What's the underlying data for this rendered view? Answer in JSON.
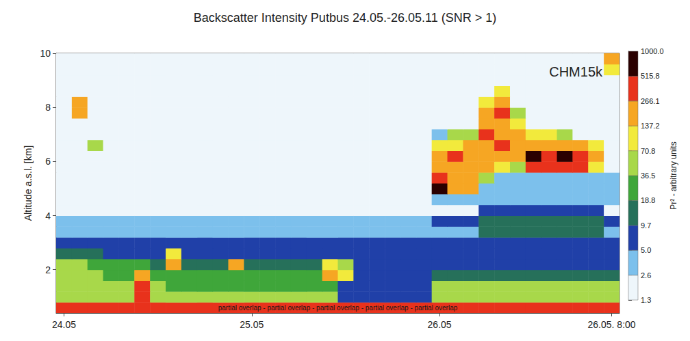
{
  "chart_data": {
    "type": "heatmap",
    "title": "Backscatter Intensity Putbus 24.05.-26.05.11 (SNR > 1)",
    "annotations": [
      "CHM15k",
      "partial overlap - partial overlap - partial overlap - partial overlap - partial overlap"
    ],
    "y_label": "Altitude a.s.l. [km]",
    "categories": [
      "24.05",
      null,
      null,
      null,
      null,
      null,
      null,
      null,
      null,
      null,
      null,
      null,
      "25.05",
      null,
      null,
      null,
      null,
      null,
      null,
      null,
      null,
      null,
      null,
      null,
      "26.05",
      null,
      null,
      null,
      null,
      null,
      null,
      null,
      null,
      null,
      null,
      "26.05. 8:00"
    ],
    "y": [
      0.6,
      1.0,
      1.4,
      1.8,
      2.2,
      2.6,
      3.0,
      3.4,
      3.8,
      4.2,
      4.6,
      5.0,
      5.4,
      5.8,
      6.2,
      6.6,
      7.0,
      7.4,
      7.8,
      8.2,
      8.6,
      9.0,
      9.4,
      9.8
    ],
    "ylim": [
      0.4,
      10
    ],
    "yticks": [
      2,
      4,
      6,
      8,
      10
    ],
    "grid": false,
    "cells": [
      [
        300,
        300,
        300,
        300,
        300,
        300,
        300,
        300,
        300,
        300,
        300,
        300,
        300,
        300,
        300,
        300,
        300,
        300,
        300,
        300,
        300,
        300,
        300,
        300,
        300,
        300,
        300,
        300,
        300,
        300,
        300,
        300,
        300,
        300,
        300,
        300
      ],
      [
        50,
        50,
        50,
        50,
        50,
        300,
        50,
        50,
        50,
        50,
        50,
        50,
        50,
        50,
        50,
        50,
        50,
        50,
        7,
        7,
        7,
        7,
        7,
        7,
        45,
        45,
        45,
        45,
        45,
        45,
        45,
        45,
        45,
        45,
        45,
        45
      ],
      [
        45,
        45,
        45,
        45,
        45,
        300,
        40,
        30,
        30,
        30,
        30,
        30,
        25,
        25,
        25,
        25,
        25,
        25,
        6,
        6,
        6,
        6,
        6,
        6,
        45,
        45,
        45,
        45,
        45,
        45,
        45,
        45,
        45,
        45,
        45,
        45
      ],
      [
        45,
        45,
        45,
        25,
        25,
        200,
        20,
        20,
        20,
        20,
        20,
        20,
        20,
        20,
        20,
        20,
        20,
        150,
        120,
        6,
        6,
        6,
        6,
        6,
        12,
        12,
        12,
        12,
        12,
        12,
        12,
        12,
        12,
        12,
        12,
        12
      ],
      [
        40,
        40,
        20,
        20,
        20,
        30,
        15,
        150,
        12,
        12,
        12,
        150,
        10,
        10,
        10,
        10,
        10,
        120,
        60,
        6,
        6,
        6,
        6,
        6,
        7,
        7,
        7,
        7,
        7,
        7,
        7,
        7,
        7,
        7,
        7,
        7
      ],
      [
        15,
        15,
        15,
        8,
        8,
        6,
        6,
        80,
        6,
        6,
        6,
        6,
        6,
        6,
        6,
        6,
        6,
        6,
        6,
        6,
        6,
        6,
        6,
        6,
        6,
        6,
        6,
        6,
        6,
        6,
        6,
        6,
        6,
        6,
        6,
        6
      ],
      [
        5,
        5,
        5,
        5,
        5,
        5,
        5,
        5,
        5,
        5,
        5,
        5,
        5,
        5,
        5,
        5,
        5,
        5,
        5,
        5,
        5,
        5,
        5,
        5,
        6,
        6,
        6,
        6,
        6,
        6,
        6,
        6,
        6,
        6,
        6,
        6
      ],
      [
        4,
        4,
        4,
        4,
        4,
        4,
        4,
        4,
        4,
        4,
        4,
        4,
        4,
        4,
        4,
        4,
        4,
        4,
        4,
        4,
        4,
        4,
        4,
        4,
        4,
        4,
        4,
        10,
        10,
        10,
        10,
        10,
        10,
        10,
        10,
        4
      ],
      [
        3,
        3,
        3,
        3,
        3,
        3,
        3,
        3,
        3,
        3,
        3,
        3,
        3,
        3,
        3,
        3,
        3,
        3,
        3,
        3,
        3,
        3,
        3,
        3,
        5,
        5,
        5,
        10,
        10,
        10,
        10,
        10,
        10,
        10,
        10,
        5
      ],
      [
        2.5,
        2.5,
        2.5,
        2.5,
        2.5,
        2.5,
        2.5,
        2.5,
        2.5,
        2.5,
        2.5,
        2.5,
        2.5,
        2.5,
        2.5,
        2.5,
        2.5,
        2.5,
        2.5,
        2.5,
        2.5,
        2.5,
        2.5,
        2.5,
        2.5,
        2.5,
        2.5,
        6,
        6,
        6,
        6,
        6,
        6,
        6,
        6,
        2.5
      ],
      [
        2,
        2,
        2,
        2,
        2,
        2,
        2,
        2,
        2,
        2,
        2,
        2,
        2,
        2,
        2,
        2,
        2,
        2,
        2,
        2,
        2,
        2,
        2,
        2,
        4,
        4,
        4,
        4,
        4,
        4,
        4,
        4,
        4,
        4,
        4,
        4
      ],
      [
        2,
        2,
        2,
        2,
        2,
        2,
        2,
        2,
        2,
        2,
        2,
        2,
        2,
        2,
        2,
        2,
        2,
        2,
        2,
        2,
        2,
        2,
        2,
        2,
        700,
        200,
        200,
        3,
        3,
        3,
        3,
        3,
        3,
        3,
        3,
        3
      ],
      [
        2,
        2,
        2,
        2,
        2,
        2,
        2,
        2,
        2,
        2,
        2,
        2,
        2,
        2,
        2,
        2,
        2,
        2,
        2,
        2,
        2,
        2,
        2,
        2,
        300,
        150,
        150,
        60,
        3,
        3,
        3,
        3,
        3,
        3,
        3,
        3
      ],
      [
        2,
        2,
        2,
        2,
        2,
        2,
        2,
        2,
        2,
        2,
        2,
        2,
        2,
        2,
        2,
        2,
        2,
        2,
        2,
        2,
        2,
        2,
        2,
        2,
        200,
        250,
        250,
        150,
        100,
        40,
        300,
        300,
        300,
        300,
        120,
        2.5
      ],
      [
        2,
        2,
        2,
        2,
        2,
        2,
        2,
        2,
        2,
        2,
        2,
        2,
        2,
        2,
        2,
        2,
        2,
        2,
        2,
        2,
        2,
        2,
        2,
        2,
        150,
        300,
        200,
        200,
        200,
        150,
        600,
        300,
        600,
        400,
        150,
        2.5
      ],
      [
        2,
        2,
        60,
        2,
        2,
        2,
        2,
        2,
        2,
        2,
        2,
        2,
        2,
        2,
        2,
        2,
        2,
        2,
        2,
        2,
        2,
        2,
        2,
        2,
        80,
        120,
        150,
        250,
        300,
        200,
        250,
        200,
        200,
        150,
        80,
        2
      ],
      [
        2,
        2,
        2,
        2,
        2,
        2,
        2,
        2,
        2,
        2,
        2,
        2,
        2,
        2,
        2,
        2,
        2,
        2,
        2,
        2,
        2,
        2,
        2,
        2,
        3,
        50,
        60,
        300,
        250,
        150,
        100,
        80,
        60,
        2,
        2,
        2
      ],
      [
        2,
        2,
        2,
        2,
        2,
        2,
        2,
        2,
        2,
        2,
        2,
        2,
        2,
        2,
        2,
        2,
        2,
        2,
        2,
        2,
        2,
        2,
        2,
        2,
        2,
        2,
        2,
        200,
        250,
        80,
        2,
        2,
        2,
        2,
        2,
        2
      ],
      [
        2,
        200,
        2,
        2,
        2,
        2,
        2,
        2,
        2,
        2,
        2,
        2,
        2,
        2,
        2,
        2,
        2,
        2,
        2,
        2,
        2,
        2,
        2,
        2,
        2,
        2,
        2,
        150,
        300,
        40,
        2,
        2,
        2,
        2,
        2,
        2
      ],
      [
        2,
        150,
        2,
        2,
        2,
        2,
        2,
        2,
        2,
        2,
        2,
        2,
        2,
        2,
        2,
        2,
        2,
        2,
        2,
        2,
        2,
        2,
        2,
        2,
        2,
        2,
        2,
        100,
        200,
        2,
        2,
        2,
        2,
        2,
        2,
        2
      ],
      [
        2,
        2,
        2,
        2,
        2,
        2,
        2,
        2,
        2,
        2,
        2,
        2,
        2,
        2,
        2,
        2,
        2,
        2,
        2,
        2,
        2,
        2,
        2,
        2,
        2,
        2,
        2,
        2,
        80,
        2,
        2,
        2,
        2,
        2,
        2,
        2
      ],
      [
        2,
        2,
        2,
        2,
        2,
        2,
        2,
        2,
        2,
        2,
        2,
        2,
        2,
        2,
        2,
        2,
        2,
        2,
        2,
        2,
        2,
        2,
        2,
        2,
        2,
        2,
        2,
        2,
        2,
        2,
        2,
        2,
        2,
        2,
        2,
        2
      ],
      [
        2,
        2,
        2,
        2,
        2,
        2,
        2,
        2,
        2,
        2,
        2,
        2,
        2,
        2,
        2,
        2,
        2,
        2,
        2,
        2,
        2,
        2,
        2,
        2,
        2,
        2,
        2,
        2,
        2,
        2,
        2,
        2,
        2,
        2,
        2,
        100
      ],
      [
        2,
        2,
        2,
        2,
        2,
        2,
        2,
        2,
        2,
        2,
        2,
        2,
        2,
        2,
        2,
        2,
        2,
        2,
        2,
        2,
        2,
        2,
        2,
        2,
        2,
        2,
        2,
        2,
        2,
        2,
        2,
        2,
        2,
        2,
        2,
        150
      ]
    ],
    "colorbar": {
      "label": "Pr² - arbitrary units",
      "range": [
        1.3,
        1000
      ],
      "ticks": [
        1.3,
        2.6,
        {
          "value": 5,
          "label": "5.0"
        },
        9.7,
        18.8,
        36.5,
        70.8,
        137.2,
        266.1,
        515.8,
        {
          "value": 1000,
          "label": "1000.0"
        }
      ],
      "colors": [
        "#eef6fb",
        "#7cc0ec",
        "#2040a8",
        "#26705a",
        "#3fa63a",
        "#a8d84a",
        "#f2ea3c",
        "#f6a623",
        "#e8321c",
        "#2a0000"
      ]
    }
  }
}
